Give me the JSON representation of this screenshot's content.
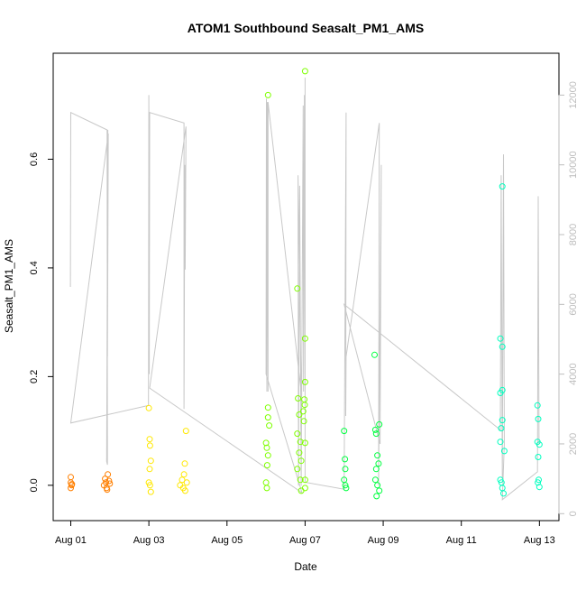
{
  "chart_data": {
    "type": "scatter",
    "title": "ATOM1 Southbound Seasalt_PM1_AMS",
    "xlabel": "Date",
    "ylabel": "Seasalt_PM1_AMS",
    "x_tick_labels": [
      "Aug 01",
      "Aug 03",
      "Aug 05",
      "Aug 07",
      "Aug 09",
      "Aug 11",
      "Aug 13"
    ],
    "x_tick_days": [
      1,
      3,
      5,
      7,
      9,
      11,
      13
    ],
    "xlim_days": [
      0.55,
      13.5
    ],
    "ylim": [
      -0.065,
      0.795
    ],
    "y_ticks": [
      0.0,
      0.2,
      0.4,
      0.6
    ],
    "y_tick_labels": [
      "0.0",
      "0.2",
      "0.4",
      "0.6"
    ],
    "y2_label": "",
    "y2lim": [
      -200,
      13200
    ],
    "y2_ticks": [
      0,
      2000,
      4000,
      6000,
      8000,
      10000,
      12000
    ],
    "y2_tick_labels": [
      "0",
      "2000",
      "4000",
      "6000",
      "8000",
      "10000",
      "12000"
    ],
    "grid": false,
    "legend": "none",
    "series": [
      {
        "color": "#ff7f00",
        "points": [
          [
            1.0,
            0.015
          ],
          [
            1.0,
            0.005
          ],
          [
            1.02,
            0.0
          ],
          [
            1.0,
            -0.005
          ],
          [
            1.03,
            0.002
          ],
          [
            1.85,
            0.0
          ],
          [
            1.9,
            0.005
          ],
          [
            1.95,
            0.02
          ],
          [
            1.92,
            -0.005
          ],
          [
            1.98,
            0.008
          ],
          [
            1.88,
            0.012
          ],
          [
            2.0,
            0.003
          ],
          [
            1.93,
            -0.008
          ]
        ]
      },
      {
        "color": "#ffe800",
        "points": [
          [
            3.0,
            0.142
          ],
          [
            3.02,
            0.085
          ],
          [
            3.03,
            0.073
          ],
          [
            3.05,
            0.045
          ],
          [
            3.02,
            0.03
          ],
          [
            3.03,
            0.0
          ],
          [
            3.05,
            -0.012
          ],
          [
            3.0,
            0.005
          ],
          [
            3.8,
            0.0
          ],
          [
            3.85,
            0.01
          ],
          [
            3.9,
            0.02
          ],
          [
            3.95,
            0.1
          ],
          [
            3.92,
            0.04
          ],
          [
            3.88,
            -0.005
          ],
          [
            3.97,
            0.005
          ],
          [
            3.93,
            -0.01
          ]
        ]
      },
      {
        "color": "#7fff00",
        "points": [
          [
            6.05,
            0.718
          ],
          [
            6.05,
            0.143
          ],
          [
            6.05,
            0.125
          ],
          [
            6.08,
            0.11
          ],
          [
            6.0,
            0.078
          ],
          [
            6.02,
            0.069
          ],
          [
            6.05,
            0.055
          ],
          [
            6.03,
            0.037
          ],
          [
            6.0,
            0.005
          ],
          [
            6.02,
            -0.005
          ],
          [
            6.8,
            0.362
          ],
          [
            6.82,
            0.16
          ],
          [
            6.85,
            0.13
          ],
          [
            6.8,
            0.095
          ],
          [
            6.88,
            0.08
          ],
          [
            6.85,
            0.06
          ],
          [
            6.9,
            0.045
          ],
          [
            6.8,
            0.03
          ],
          [
            6.88,
            0.01
          ],
          [
            6.9,
            -0.01
          ],
          [
            7.0,
            0.762
          ],
          [
            7.0,
            0.27
          ],
          [
            7.0,
            0.19
          ],
          [
            6.98,
            0.158
          ],
          [
            6.99,
            0.148
          ],
          [
            6.95,
            0.136
          ],
          [
            6.97,
            0.118
          ],
          [
            7.0,
            0.078
          ],
          [
            7.0,
            0.01
          ],
          [
            7.0,
            -0.005
          ]
        ]
      },
      {
        "color": "#00ff40",
        "points": [
          [
            8.0,
            0.1
          ],
          [
            8.02,
            0.048
          ],
          [
            8.03,
            0.03
          ],
          [
            8.0,
            0.01
          ],
          [
            8.03,
            0.0
          ],
          [
            8.05,
            -0.005
          ],
          [
            8.78,
            0.24
          ],
          [
            8.8,
            0.102
          ],
          [
            8.82,
            0.095
          ],
          [
            8.9,
            0.112
          ],
          [
            8.85,
            0.055
          ],
          [
            8.88,
            0.04
          ],
          [
            8.82,
            0.03
          ],
          [
            8.8,
            0.01
          ],
          [
            8.85,
            0.0
          ],
          [
            8.9,
            -0.01
          ],
          [
            8.83,
            -0.02
          ]
        ]
      },
      {
        "color": "#00ffbf",
        "points": [
          [
            12.05,
            0.55
          ],
          [
            12.0,
            0.27
          ],
          [
            12.05,
            0.255
          ],
          [
            12.05,
            0.175
          ],
          [
            12.0,
            0.17
          ],
          [
            12.05,
            0.12
          ],
          [
            12.02,
            0.105
          ],
          [
            12.0,
            0.08
          ],
          [
            12.1,
            0.063
          ],
          [
            12.0,
            0.01
          ],
          [
            12.05,
            -0.005
          ],
          [
            12.08,
            -0.015
          ],
          [
            12.03,
            0.005
          ],
          [
            12.95,
            0.147
          ],
          [
            12.97,
            0.122
          ],
          [
            12.95,
            0.08
          ],
          [
            13.0,
            0.075
          ],
          [
            12.97,
            0.052
          ],
          [
            12.98,
            0.01
          ],
          [
            13.0,
            -0.003
          ],
          [
            12.96,
            0.005
          ]
        ]
      }
    ],
    "secondary_line": {
      "color": "#c8c8c8",
      "points": [
        [
          0.99,
          6500
        ],
        [
          1.0,
          11500
        ],
        [
          1.93,
          11000
        ],
        [
          1.94,
          1400
        ],
        [
          1.92,
          1500
        ],
        [
          1.95,
          11000
        ],
        [
          1.94,
          4500
        ],
        [
          1.96,
          10900
        ],
        [
          1.0,
          2600
        ],
        [
          2.99,
          3100
        ],
        [
          3.0,
          12000
        ],
        [
          3.01,
          4000
        ],
        [
          3.02,
          11500
        ],
        [
          3.9,
          11200
        ],
        [
          3.9,
          3000
        ],
        [
          3.92,
          10000
        ],
        [
          3.93,
          7000
        ],
        [
          3.95,
          11100
        ],
        [
          3.02,
          3600
        ],
        [
          6.92,
          600
        ],
        [
          6.0,
          4000
        ],
        [
          6.01,
          11900
        ],
        [
          6.02,
          3500
        ],
        [
          6.03,
          11800
        ],
        [
          6.05,
          3500
        ],
        [
          6.05,
          11800
        ],
        [
          6.9,
          3500
        ],
        [
          6.82,
          9700
        ],
        [
          6.83,
          800
        ],
        [
          6.86,
          9400
        ],
        [
          6.9,
          800
        ],
        [
          6.95,
          11700
        ],
        [
          6.96,
          3500
        ],
        [
          6.98,
          12000
        ],
        [
          7.0,
          3500
        ],
        [
          7.0,
          12500
        ],
        [
          7.0,
          900
        ],
        [
          8.0,
          700
        ],
        [
          8.05,
          11500
        ],
        [
          8.04,
          2800
        ],
        [
          8.05,
          4500
        ],
        [
          8.9,
          11200
        ],
        [
          8.88,
          800
        ],
        [
          8.95,
          10000
        ],
        [
          8.92,
          2000
        ],
        [
          8.0,
          6000
        ],
        [
          12.0,
          2400
        ],
        [
          12.02,
          9700
        ],
        [
          12.05,
          1000
        ],
        [
          12.08,
          10300
        ],
        [
          12.1,
          2000
        ],
        [
          12.05,
          400
        ],
        [
          12.95,
          1200
        ],
        [
          12.97,
          9100
        ],
        [
          12.99,
          2000
        ]
      ]
    }
  }
}
